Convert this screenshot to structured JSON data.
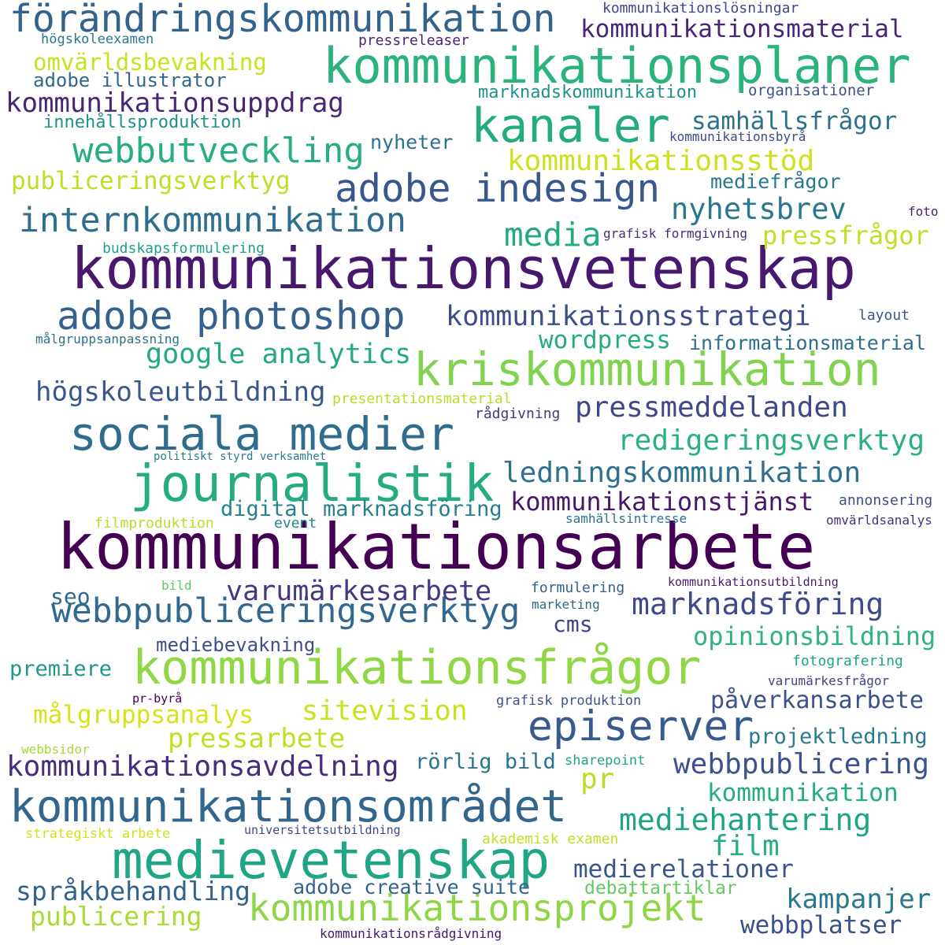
{
  "words": [
    {
      "text": "kommunikationsarbete",
      "color": "#440154"
    },
    {
      "text": "kommunikationsvetenskap",
      "color": "#46186e"
    },
    {
      "text": "kommunikationsplaner",
      "color": "#2ab47c"
    },
    {
      "text": "kommunikationsfrågor",
      "color": "#8fd744"
    },
    {
      "text": "medievetenskap",
      "color": "#21a685"
    },
    {
      "text": "kommunikationsområdet",
      "color": "#31668e"
    },
    {
      "text": "kriskommunikation",
      "color": "#7fd34e"
    },
    {
      "text": "förändringskommunikation",
      "color": "#33628d"
    },
    {
      "text": "journalistik",
      "color": "#25ac82"
    },
    {
      "text": "sociala medier",
      "color": "#2f6c8e"
    },
    {
      "text": "kanaler",
      "color": "#25ab82"
    },
    {
      "text": "adobe photoshop",
      "color": "#34618d"
    },
    {
      "text": "adobe indesign",
      "color": "#38578c"
    },
    {
      "text": "kommunikationsprojekt",
      "color": "#8ed645"
    },
    {
      "text": "webbpubliceringsverktyg",
      "color": "#31688e"
    },
    {
      "text": "internkommunikation",
      "color": "#2e6e8e"
    },
    {
      "text": "episerver",
      "color": "#375b8d"
    },
    {
      "text": "webbutveckling",
      "color": "#28ae80"
    },
    {
      "text": "kommunikationsuppdrag",
      "color": "#482576"
    },
    {
      "text": "kommunikationsmaterial",
      "color": "#482576"
    },
    {
      "text": "kommunikationsstrategi",
      "color": "#3d4e8a"
    },
    {
      "text": "pressmeddelanden",
      "color": "#3f4889"
    },
    {
      "text": "ledningskommunikation",
      "color": "#2d718e"
    },
    {
      "text": "kommunikationsavdelning",
      "color": "#472c7a"
    },
    {
      "text": "varumärkesarbete",
      "color": "#453781"
    },
    {
      "text": "marknadsföring",
      "color": "#3e4a89"
    },
    {
      "text": "redigeringsverktyg",
      "color": "#2bb07f"
    },
    {
      "text": "högskoleutbildning",
      "color": "#38588c"
    },
    {
      "text": "kommunikationstjänst",
      "color": "#481769"
    },
    {
      "text": "webbpublicering",
      "color": "#3b528b"
    },
    {
      "text": "mediehantering",
      "color": "#20a486"
    },
    {
      "text": "google analytics",
      "color": "#22a884"
    },
    {
      "text": "samhällsfrågor",
      "color": "#2c728e"
    },
    {
      "text": "kommunikationsstöd",
      "color": "#cde11d"
    },
    {
      "text": "nyhetsbrev",
      "color": "#2a788e"
    },
    {
      "text": "media",
      "color": "#24aa83"
    },
    {
      "text": "pressfrågor",
      "color": "#c0df25"
    },
    {
      "text": "wordpress",
      "color": "#25ab82"
    },
    {
      "text": "informationsmaterial",
      "color": "#2e6f8e"
    },
    {
      "text": "opinionsbildning",
      "color": "#2fb47c"
    },
    {
      "text": "påverkansarbete",
      "color": "#3b528b"
    },
    {
      "text": "språkbehandling",
      "color": "#33638d"
    },
    {
      "text": "kommunikation",
      "color": "#25ac82"
    },
    {
      "text": "medierelationer",
      "color": "#39568c"
    },
    {
      "text": "kampanjer",
      "color": "#2a788e"
    },
    {
      "text": "webbplatser",
      "color": "#3b518b"
    },
    {
      "text": "publicering",
      "color": "#a8db34"
    },
    {
      "text": "pressarbete",
      "color": "#c2df23"
    },
    {
      "text": "målgruppsanalys",
      "color": "#d8e219"
    },
    {
      "text": "sitevision",
      "color": "#cae11f"
    },
    {
      "text": "publiceringsverktyg",
      "color": "#bddf26"
    },
    {
      "text": "omvärldsbevakning",
      "color": "#cae11f"
    },
    {
      "text": "adobe illustrator",
      "color": "#31688e"
    },
    {
      "text": "innehållsproduktion",
      "color": "#21918c"
    },
    {
      "text": "nyheter",
      "color": "#2c728e"
    },
    {
      "text": "mediefrågor",
      "color": "#2a788e"
    },
    {
      "text": "digital marknadsföring",
      "color": "#27808e"
    },
    {
      "text": "film",
      "color": "#26ad81"
    },
    {
      "text": "pr",
      "color": "#bade28"
    },
    {
      "text": "rörlig bild",
      "color": "#2c738e"
    },
    {
      "text": "adobe creative suite",
      "color": "#33628d"
    },
    {
      "text": "debattartiklar",
      "color": "#63cb5f"
    },
    {
      "text": "projektledning",
      "color": "#287c8e"
    },
    {
      "text": "mediebevakning",
      "color": "#3c4f8a"
    },
    {
      "text": "premiere",
      "color": "#1f988b"
    },
    {
      "text": "seo",
      "color": "#31688e"
    },
    {
      "text": "cms",
      "color": "#414487"
    },
    {
      "text": "kommunikationslösningar",
      "color": "#3e4989"
    },
    {
      "text": "högskoleexamen",
      "color": "#2a788e"
    },
    {
      "text": "pressreleaser",
      "color": "#482475"
    },
    {
      "text": "marknadskommunikation",
      "color": "#21918c"
    },
    {
      "text": "organisationer",
      "color": "#3b528b"
    },
    {
      "text": "kommunikationsbyrå",
      "color": "#3e4a89"
    },
    {
      "text": "foto",
      "color": "#482475"
    },
    {
      "text": "grafisk formgivning",
      "color": "#472d7b"
    },
    {
      "text": "budskapsformulering",
      "color": "#1fa088"
    },
    {
      "text": "layout",
      "color": "#39568c"
    },
    {
      "text": "målgruppsanpassning",
      "color": "#2c728e"
    },
    {
      "text": "presentationsmaterial",
      "color": "#b5de2b"
    },
    {
      "text": "rådgivning",
      "color": "#443983"
    },
    {
      "text": "politiskt styrd verksamhet",
      "color": "#287c8e"
    },
    {
      "text": "annonsering",
      "color": "#3d4e8a"
    },
    {
      "text": "samhällsintresse",
      "color": "#2c728e"
    },
    {
      "text": "omvärldsanalys",
      "color": "#46307e"
    },
    {
      "text": "filmproduktion",
      "color": "#b5de2b"
    },
    {
      "text": "event",
      "color": "#25858e"
    },
    {
      "text": "bild",
      "color": "#5ec962"
    },
    {
      "text": "formulering",
      "color": "#33638d"
    },
    {
      "text": "kommunikationsutbildning",
      "color": "#481a6c"
    },
    {
      "text": "marketing",
      "color": "#31688e"
    },
    {
      "text": "fotografering",
      "color": "#20a486"
    },
    {
      "text": "varumärkesfrågor",
      "color": "#414487"
    },
    {
      "text": "pr-byrå",
      "color": "#440154"
    },
    {
      "text": "grafisk produktion",
      "color": "#3b528b"
    },
    {
      "text": "webbsidor",
      "color": "#a5db36"
    },
    {
      "text": "sharepoint",
      "color": "#20a386"
    },
    {
      "text": "strategiskt arbete",
      "color": "#d2e21b"
    },
    {
      "text": "universitetsutbildning",
      "color": "#3e4989"
    },
    {
      "text": "akademisk examen",
      "color": "#c2df23"
    },
    {
      "text": "kommunikationsrådgivning",
      "color": "#481769"
    }
  ]
}
